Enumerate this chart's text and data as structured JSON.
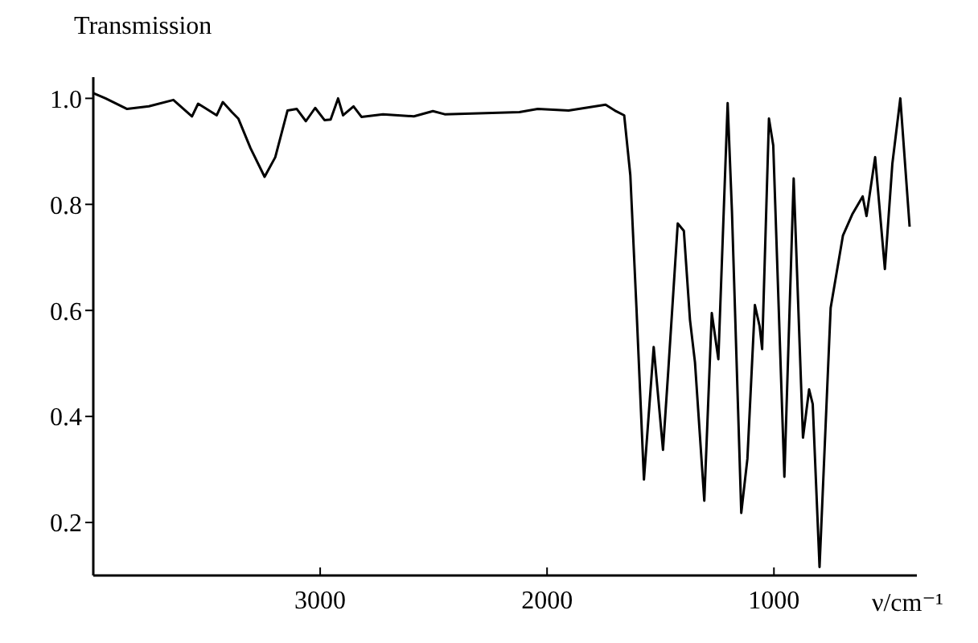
{
  "chart_data": {
    "type": "line",
    "xlabel": "ν/cm⁻¹",
    "ylabel": "Transmission",
    "xlim": [
      4000,
      370
    ],
    "xticks": [
      3000,
      2000,
      1000
    ],
    "ylim": [
      0.1,
      1.04
    ],
    "yticks": [
      {
        "value": 0.2,
        "label": "0.2"
      },
      {
        "value": 0.4,
        "label": "0.4"
      },
      {
        "value": 0.6,
        "label": "0.6"
      },
      {
        "value": 0.8,
        "label": "0.8"
      },
      {
        "value": 1.0,
        "label": "1.0"
      }
    ],
    "grid": false,
    "legend": false,
    "marker": "none",
    "line_style": "solid",
    "series": [
      {
        "color": "#000000",
        "x": [
          4000,
          3946,
          3851,
          3755,
          3647,
          3565,
          3538,
          3456,
          3429,
          3389,
          3361,
          3307,
          3245,
          3198,
          3144,
          3103,
          3063,
          3022,
          2981,
          2954,
          2921,
          2899,
          2853,
          2818,
          2723,
          2587,
          2503,
          2451,
          2122,
          2041,
          1905,
          1742,
          1701,
          1660,
          1633,
          1606,
          1573,
          1530,
          1489,
          1465,
          1424,
          1397,
          1370,
          1348,
          1307,
          1274,
          1245,
          1204,
          1185,
          1144,
          1117,
          1084,
          1063,
          1052,
          1022,
          1003,
          954,
          913,
          872,
          845,
          829,
          799,
          750,
          696,
          655,
          609,
          592,
          554,
          511,
          478,
          443,
          402
        ],
        "values": [
          1.01,
          1.0,
          0.98,
          0.985,
          0.997,
          0.966,
          0.99,
          0.968,
          0.993,
          0.974,
          0.962,
          0.906,
          0.852,
          0.889,
          0.977,
          0.98,
          0.957,
          0.982,
          0.959,
          0.96,
          1.0,
          0.968,
          0.985,
          0.965,
          0.97,
          0.966,
          0.976,
          0.97,
          0.974,
          0.98,
          0.977,
          0.988,
          0.977,
          0.968,
          0.855,
          0.605,
          0.281,
          0.531,
          0.337,
          0.491,
          0.764,
          0.75,
          0.582,
          0.502,
          0.241,
          0.595,
          0.508,
          0.991,
          0.786,
          0.218,
          0.32,
          0.61,
          0.57,
          0.527,
          0.962,
          0.911,
          0.286,
          0.849,
          0.36,
          0.451,
          0.423,
          0.116,
          0.605,
          0.741,
          0.781,
          0.815,
          0.778,
          0.889,
          0.678,
          0.877,
          1.0,
          0.758
        ]
      }
    ]
  }
}
